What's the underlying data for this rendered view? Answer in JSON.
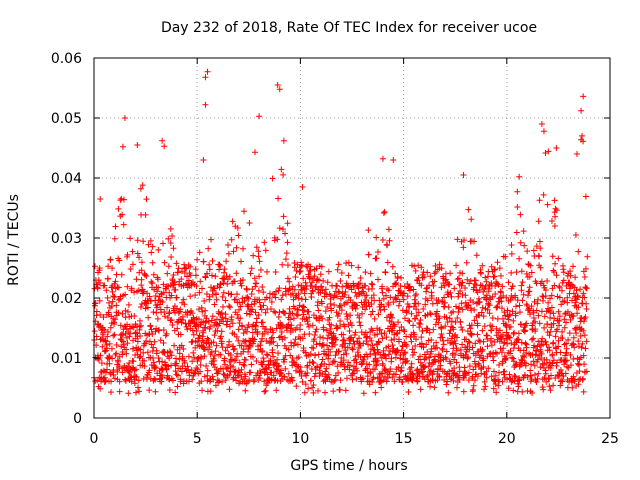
{
  "chart_data": {
    "type": "scatter",
    "title": "Day 232 of 2018, Rate Of TEC Index for receiver ucoe",
    "xlabel": "GPS time / hours",
    "ylabel": "ROTI / TECUs",
    "xlim": [
      0,
      25
    ],
    "ylim": [
      0,
      0.06
    ],
    "x_ticks": [
      0,
      5,
      10,
      15,
      20,
      25
    ],
    "x_tick_labels": [
      "0",
      "5",
      "10",
      "15",
      "20",
      "25"
    ],
    "y_ticks": [
      0,
      0.01,
      0.02,
      0.03,
      0.04,
      0.05,
      0.06
    ],
    "y_tick_labels": [
      "0",
      "0.01",
      "0.02",
      "0.03",
      "0.04",
      "0.05",
      "0.06"
    ],
    "grid": true,
    "marker": "+",
    "series_color": "#ff0000",
    "series": [
      {
        "name": "ROTI",
        "x_range": [
          0,
          23.9
        ],
        "typical_band": [
          0.006,
          0.022
        ],
        "baseline": 0.004,
        "notable_points": [
          {
            "x": 5.5,
            "y": 0.0577
          },
          {
            "x": 5.4,
            "y": 0.0568
          },
          {
            "x": 8.9,
            "y": 0.0555
          },
          {
            "x": 9.0,
            "y": 0.0548
          },
          {
            "x": 23.7,
            "y": 0.0536
          },
          {
            "x": 5.4,
            "y": 0.0522
          },
          {
            "x": 8.0,
            "y": 0.0503
          },
          {
            "x": 1.5,
            "y": 0.05
          },
          {
            "x": 23.6,
            "y": 0.0512
          },
          {
            "x": 21.7,
            "y": 0.049
          },
          {
            "x": 3.3,
            "y": 0.0462
          },
          {
            "x": 3.4,
            "y": 0.0453
          },
          {
            "x": 21.8,
            "y": 0.0478
          },
          {
            "x": 1.4,
            "y": 0.0452
          },
          {
            "x": 14.0,
            "y": 0.0432
          },
          {
            "x": 14.5,
            "y": 0.043
          },
          {
            "x": 22.4,
            "y": 0.045
          },
          {
            "x": 23.4,
            "y": 0.044
          },
          {
            "x": 7.8,
            "y": 0.0443
          },
          {
            "x": 9.2,
            "y": 0.0462
          },
          {
            "x": 5.3,
            "y": 0.043
          },
          {
            "x": 2.1,
            "y": 0.0455
          },
          {
            "x": 20.6,
            "y": 0.0402
          },
          {
            "x": 17.9,
            "y": 0.0405
          },
          {
            "x": 0.3,
            "y": 0.0365
          },
          {
            "x": 10.1,
            "y": 0.0385
          }
        ]
      }
    ]
  }
}
